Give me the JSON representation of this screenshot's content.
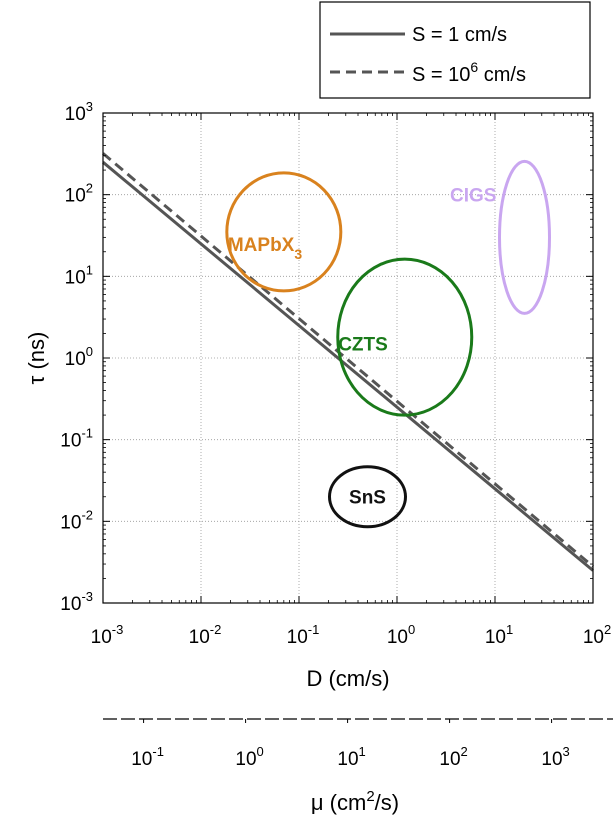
{
  "chart_data": {
    "type": "line",
    "xlabel": "D (cm/s)",
    "ylabel": "τ (ns)",
    "x_scale": "log",
    "y_scale": "log",
    "xlim": [
      0.001,
      100
    ],
    "ylim": [
      0.001,
      1000
    ],
    "grid": true,
    "legend_position": "top-right",
    "x_ticks": [
      {
        "value": 0.001,
        "base": "10",
        "exp": "-3"
      },
      {
        "value": 0.01,
        "base": "10",
        "exp": "-2"
      },
      {
        "value": 0.1,
        "base": "10",
        "exp": "-1"
      },
      {
        "value": 1,
        "base": "10",
        "exp": "0"
      },
      {
        "value": 10,
        "base": "10",
        "exp": "1"
      },
      {
        "value": 100,
        "base": "10",
        "exp": "2"
      }
    ],
    "y_ticks": [
      {
        "value": 0.001,
        "base": "10",
        "exp": "-3"
      },
      {
        "value": 0.01,
        "base": "10",
        "exp": "-2"
      },
      {
        "value": 0.1,
        "base": "10",
        "exp": "-1"
      },
      {
        "value": 1,
        "base": "10",
        "exp": "0"
      },
      {
        "value": 10,
        "base": "10",
        "exp": "1"
      },
      {
        "value": 100,
        "base": "10",
        "exp": "2"
      },
      {
        "value": 1000,
        "base": "10",
        "exp": "3"
      }
    ],
    "series": [
      {
        "name": "S = 1 cm/s",
        "style": "solid",
        "color": "#555555",
        "x": [
          0.001,
          100
        ],
        "y": [
          250,
          0.0025
        ]
      },
      {
        "name_prefix": "S = 10",
        "name_sup": "6",
        "name_suffix": " cm/s",
        "style": "dashed",
        "color": "#555555",
        "x": [
          0.001,
          100
        ],
        "y": [
          320,
          0.0028
        ]
      }
    ],
    "regions": [
      {
        "label": "MAPbX",
        "label_sub": "3",
        "color": "#d9821e",
        "center": [
          0.07,
          35
        ],
        "label_at": [
          0.045,
          25
        ]
      },
      {
        "label": "CZTS",
        "color": "#1a7a1a",
        "center": [
          1.2,
          1.8
        ],
        "label_at": [
          0.45,
          1.5
        ]
      },
      {
        "label": "CIGS",
        "color": "#c9a6f0",
        "center": [
          20,
          30
        ],
        "label_at": [
          6,
          100
        ]
      },
      {
        "label": "SnS",
        "color": "#111111",
        "center": [
          0.5,
          0.02
        ],
        "label_at": [
          0.5,
          0.02
        ]
      }
    ],
    "secondary_axis": {
      "xlabel_prefix": "μ (cm",
      "xlabel_sup": "2",
      "xlabel_suffix": "/s)",
      "xlim": [
        0.04,
        4000
      ],
      "x_ticks": [
        {
          "value": 0.1,
          "base": "10",
          "exp": "-1"
        },
        {
          "value": 1,
          "base": "10",
          "exp": "0"
        },
        {
          "value": 10,
          "base": "10",
          "exp": "1"
        },
        {
          "value": 100,
          "base": "10",
          "exp": "2"
        },
        {
          "value": 1000,
          "base": "10",
          "exp": "3"
        }
      ]
    }
  }
}
